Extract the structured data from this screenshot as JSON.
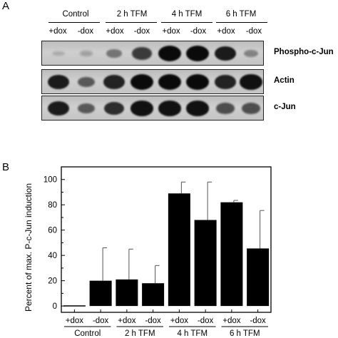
{
  "panel_a": {
    "letter": "A",
    "groups": [
      "Control",
      "2 h TFM",
      "4 h TFM",
      "6 h TFM"
    ],
    "lanes": [
      "+dox",
      "-dox",
      "+dox",
      "-dox",
      "+dox",
      "-dox",
      "+dox",
      "-dox"
    ],
    "blots": [
      {
        "label": "Phospho-c-Jun",
        "band_intensity": [
          0.08,
          0.12,
          0.38,
          0.72,
          1.0,
          1.0,
          0.9,
          0.3
        ]
      },
      {
        "label": "Actin",
        "band_intensity": [
          0.9,
          0.55,
          0.85,
          1.0,
          1.0,
          1.0,
          0.85,
          0.95
        ]
      },
      {
        "label": "c-Jun",
        "band_intensity": [
          0.9,
          0.55,
          0.8,
          0.95,
          0.95,
          0.95,
          0.6,
          0.6
        ]
      }
    ]
  },
  "panel_b": {
    "letter": "B"
  },
  "chart_data": {
    "type": "bar",
    "categories": [
      "+dox",
      "-dox",
      "+dox",
      "-dox",
      "+dox",
      "-dox",
      "+dox",
      "-dox"
    ],
    "groups": [
      "Control",
      "2 h TFM",
      "4 h TFM",
      "6 h TFM"
    ],
    "values": [
      0.5,
      20,
      21,
      18,
      89,
      68,
      82,
      45.5
    ],
    "error": [
      0,
      26,
      24,
      14,
      9,
      30,
      1.5,
      30
    ],
    "ylabel": "Percent of max. P-c-Jun induction",
    "xlabel": "",
    "ylim": [
      -5,
      110
    ],
    "yticks": [
      0,
      20,
      40,
      60,
      80,
      100
    ],
    "bar_color": "#000000",
    "grid": false
  }
}
